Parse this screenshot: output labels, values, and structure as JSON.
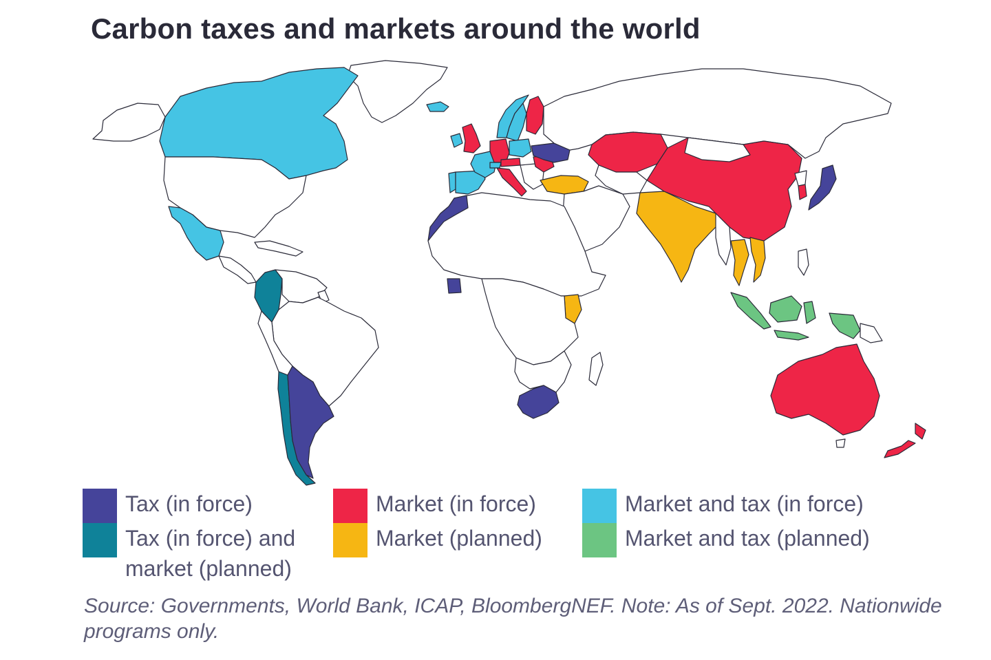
{
  "title": "Carbon taxes and markets around the world",
  "categories": {
    "tax_in_force": {
      "label": "Tax (in force)",
      "color": "#45449a"
    },
    "tax_in_force_market_planned": {
      "label": "Tax (in force) and market (planned)",
      "color": "#0f8299"
    },
    "market_in_force": {
      "label": "Market (in force)",
      "color": "#ee2547"
    },
    "market_planned": {
      "label": "Market (planned)",
      "color": "#f6b613"
    },
    "market_and_tax_in_force": {
      "label": "Market and tax (in force)",
      "color": "#45c4e4"
    },
    "market_and_tax_planned": {
      "label": "Market and tax (planned)",
      "color": "#6cc582"
    },
    "no_program": {
      "color": "#ffffff"
    }
  },
  "regions": {
    "tax_in_force": [
      "Ukraine",
      "Morocco",
      "Côte d'Ivoire",
      "Argentina",
      "South Africa",
      "Japan"
    ],
    "tax_in_force_market_planned": [
      "Colombia",
      "Chile"
    ],
    "market_in_force": [
      "United Kingdom",
      "Germany",
      "Austria",
      "Italy",
      "Romania",
      "Bulgaria",
      "Finland",
      "Kazakhstan",
      "China",
      "South Korea",
      "Australia",
      "New Zealand"
    ],
    "market_planned": [
      "Turkey",
      "India",
      "Thailand",
      "Vietnam",
      "Kenya"
    ],
    "market_and_tax_in_force": [
      "Canada",
      "Mexico",
      "France",
      "Spain",
      "Portugal",
      "Sweden",
      "Norway",
      "Poland",
      "Denmark",
      "Switzerland",
      "Iceland",
      "Ireland"
    ],
    "market_and_tax_planned": [
      "Indonesia"
    ]
  },
  "source": "Source: Governments, World Bank, ICAP, BloombergNEF. Note: As of Sept. 2022. Nationwide programs only."
}
